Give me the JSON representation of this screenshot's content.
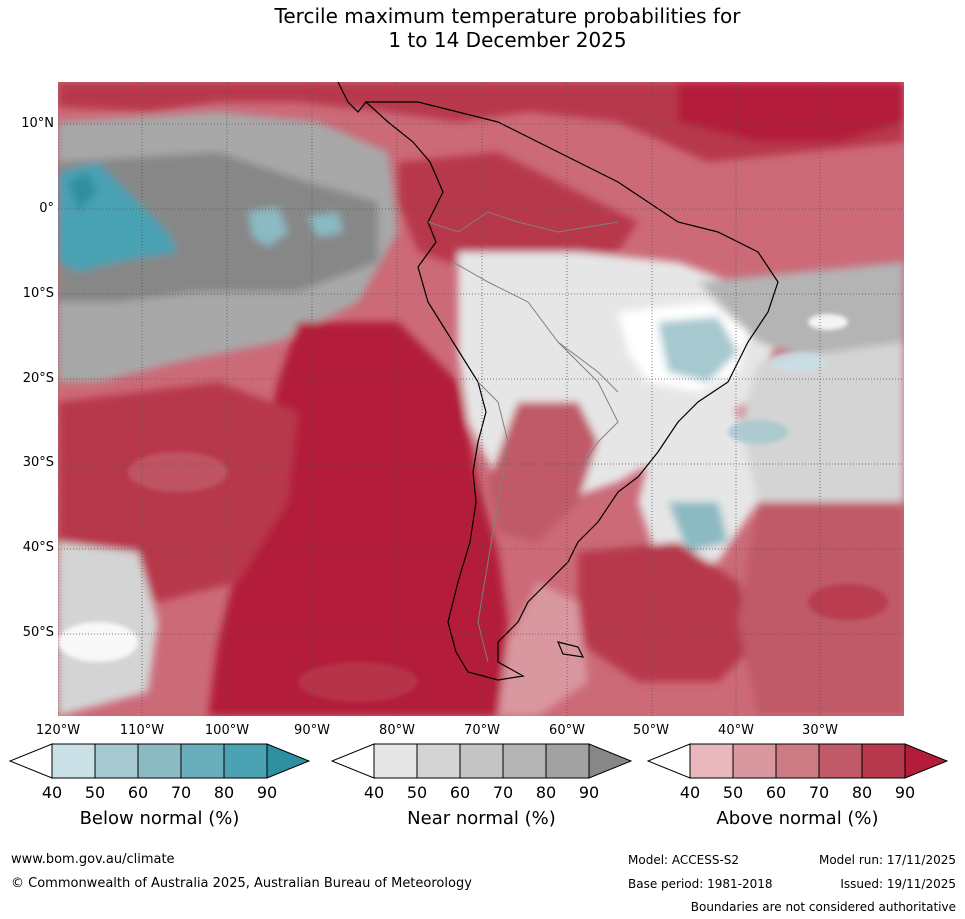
{
  "title": {
    "line1": "Tercile maximum temperature probabilities for",
    "line2": "1 to 14 December 2025"
  },
  "map": {
    "lat_labels": [
      "10°N",
      "0°",
      "10°S",
      "20°S",
      "30°S",
      "40°S",
      "50°S"
    ],
    "lon_labels": [
      "120°W",
      "110°W",
      "100°W",
      "90°W",
      "80°W",
      "70°W",
      "60°W",
      "50°W",
      "40°W",
      "30°W"
    ]
  },
  "legend": {
    "below": {
      "caption": "Below normal (%)",
      "ticks": [
        "40",
        "50",
        "60",
        "70",
        "80",
        "90"
      ],
      "colors": [
        "#ffffff",
        "#c8e0e6",
        "#a6c8cf",
        "#8bbac3",
        "#6aaebc",
        "#4aa2b3",
        "#2e8fa1"
      ]
    },
    "near": {
      "caption": "Near normal (%)",
      "ticks": [
        "40",
        "50",
        "60",
        "70",
        "80",
        "90"
      ],
      "colors": [
        "#ffffff",
        "#e6e6e6",
        "#d4d4d4",
        "#c4c4c4",
        "#b4b4b4",
        "#a2a2a2",
        "#878787"
      ]
    },
    "above": {
      "caption": "Above normal (%)",
      "ticks": [
        "40",
        "50",
        "60",
        "70",
        "80",
        "90"
      ],
      "colors": [
        "#ffffff",
        "#e8b8bd",
        "#d9979f",
        "#cc7a84",
        "#c05a68",
        "#b8394b",
        "#b31d3a"
      ]
    }
  },
  "footer": {
    "website": "www.bom.gov.au/climate",
    "copyright": "© Commonwealth of Australia 2025, Australian Bureau of Meteorology",
    "model": "Model: ACCESS-S2",
    "base_period": "Base period: 1981-2018",
    "model_run": "Model run: 17/11/2025",
    "issued": "Issued: 19/11/2025",
    "disclaimer": "Boundaries are not considered authoritative"
  }
}
